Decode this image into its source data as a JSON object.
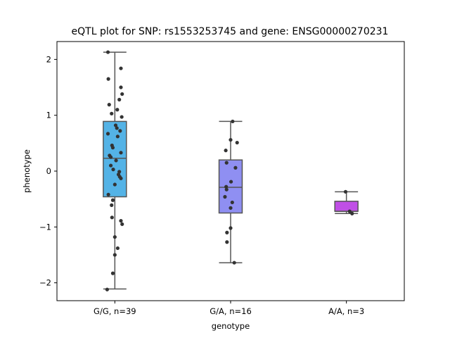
{
  "chart_data": {
    "type": "box",
    "title": "eQTL plot for SNP: rs1553253745 and gene: ENSG00000270231",
    "xlabel": "genotype",
    "ylabel": "phenotype",
    "ylim": [
      -2.32,
      2.32
    ],
    "yticks": [
      {
        "value": 2,
        "label": "2"
      },
      {
        "value": 1,
        "label": "1"
      },
      {
        "value": 0,
        "label": "0"
      },
      {
        "value": -1,
        "label": "−1"
      },
      {
        "value": -2,
        "label": "−2"
      }
    ],
    "grid": false,
    "categories": [
      "G/G, n=39",
      "G/A, n=16",
      "A/A, n=3"
    ],
    "boxes": [
      {
        "category": "G/G, n=39",
        "color": "#54b3e6",
        "whisker_low": -2.11,
        "q1": -0.46,
        "median": 0.23,
        "q3": 0.89,
        "whisker_high": 2.13
      },
      {
        "category": "G/A, n=16",
        "color": "#8f8ff2",
        "whisker_low": -1.64,
        "q1": -0.75,
        "median": -0.29,
        "q3": 0.2,
        "whisker_high": 0.89
      },
      {
        "category": "A/A, n=3",
        "color": "#c04fe6",
        "whisker_low": -0.76,
        "q1": -0.72,
        "median": -0.72,
        "q3": -0.54,
        "whisker_high": -0.37
      }
    ],
    "points": [
      {
        "category": "G/G, n=39",
        "jitter": -0.17,
        "value": 2.13
      },
      {
        "category": "G/G, n=39",
        "jitter": 0.15,
        "value": 1.84
      },
      {
        "category": "G/G, n=39",
        "jitter": -0.16,
        "value": 1.65
      },
      {
        "category": "G/G, n=39",
        "jitter": 0.15,
        "value": 1.5
      },
      {
        "category": "G/G, n=39",
        "jitter": 0.18,
        "value": 1.38
      },
      {
        "category": "G/G, n=39",
        "jitter": 0.11,
        "value": 1.28
      },
      {
        "category": "G/G, n=39",
        "jitter": -0.14,
        "value": 1.19
      },
      {
        "category": "G/G, n=39",
        "jitter": 0.06,
        "value": 1.1
      },
      {
        "category": "G/G, n=39",
        "jitter": -0.08,
        "value": 1.03
      },
      {
        "category": "G/G, n=39",
        "jitter": 0.17,
        "value": 0.97
      },
      {
        "category": "G/G, n=39",
        "jitter": 0.02,
        "value": 0.82
      },
      {
        "category": "G/G, n=39",
        "jitter": 0.05,
        "value": 0.77
      },
      {
        "category": "G/G, n=39",
        "jitter": 0.13,
        "value": 0.72
      },
      {
        "category": "G/G, n=39",
        "jitter": -0.17,
        "value": 0.67
      },
      {
        "category": "G/G, n=39",
        "jitter": 0.07,
        "value": 0.62
      },
      {
        "category": "G/G, n=39",
        "jitter": -0.07,
        "value": 0.46
      },
      {
        "category": "G/G, n=39",
        "jitter": -0.05,
        "value": 0.42
      },
      {
        "category": "G/G, n=39",
        "jitter": 0.15,
        "value": 0.33
      },
      {
        "category": "G/G, n=39",
        "jitter": -0.13,
        "value": 0.28
      },
      {
        "category": "G/G, n=39",
        "jitter": -0.1,
        "value": 0.25
      },
      {
        "category": "G/G, n=39",
        "jitter": 0.03,
        "value": 0.19
      },
      {
        "category": "G/G, n=39",
        "jitter": -0.1,
        "value": 0.1
      },
      {
        "category": "G/G, n=39",
        "jitter": -0.04,
        "value": 0.03
      },
      {
        "category": "G/G, n=39",
        "jitter": 0.11,
        "value": -0.01
      },
      {
        "category": "G/G, n=39",
        "jitter": 0.09,
        "value": -0.06
      },
      {
        "category": "G/G, n=39",
        "jitter": 0.12,
        "value": -0.1
      },
      {
        "category": "G/G, n=39",
        "jitter": 0.15,
        "value": -0.13
      },
      {
        "category": "G/G, n=39",
        "jitter": 0.0,
        "value": -0.24
      },
      {
        "category": "G/G, n=39",
        "jitter": -0.16,
        "value": -0.42
      },
      {
        "category": "G/G, n=39",
        "jitter": -0.05,
        "value": -0.52
      },
      {
        "category": "G/G, n=39",
        "jitter": -0.08,
        "value": -0.61
      },
      {
        "category": "G/G, n=39",
        "jitter": -0.07,
        "value": -0.83
      },
      {
        "category": "G/G, n=39",
        "jitter": 0.15,
        "value": -0.89
      },
      {
        "category": "G/G, n=39",
        "jitter": 0.18,
        "value": -0.95
      },
      {
        "category": "G/G, n=39",
        "jitter": 0.0,
        "value": -1.18
      },
      {
        "category": "G/G, n=39",
        "jitter": 0.07,
        "value": -1.38
      },
      {
        "category": "G/G, n=39",
        "jitter": 0.0,
        "value": -1.5
      },
      {
        "category": "G/G, n=39",
        "jitter": -0.05,
        "value": -1.83
      },
      {
        "category": "G/G, n=39",
        "jitter": -0.19,
        "value": -2.12
      },
      {
        "category": "G/A, n=16",
        "jitter": 0.05,
        "value": 0.89
      },
      {
        "category": "G/A, n=16",
        "jitter": 0.0,
        "value": 0.56
      },
      {
        "category": "G/A, n=16",
        "jitter": 0.16,
        "value": 0.51
      },
      {
        "category": "G/A, n=16",
        "jitter": -0.12,
        "value": 0.37
      },
      {
        "category": "G/A, n=16",
        "jitter": -0.1,
        "value": 0.15
      },
      {
        "category": "G/A, n=16",
        "jitter": 0.12,
        "value": 0.06
      },
      {
        "category": "G/A, n=16",
        "jitter": 0.01,
        "value": -0.19
      },
      {
        "category": "G/A, n=16",
        "jitter": -0.11,
        "value": -0.28
      },
      {
        "category": "G/A, n=16",
        "jitter": -0.1,
        "value": -0.33
      },
      {
        "category": "G/A, n=16",
        "jitter": -0.14,
        "value": -0.46
      },
      {
        "category": "G/A, n=16",
        "jitter": 0.04,
        "value": -0.56
      },
      {
        "category": "G/A, n=16",
        "jitter": 0.0,
        "value": -0.66
      },
      {
        "category": "G/A, n=16",
        "jitter": 0.0,
        "value": -1.02
      },
      {
        "category": "G/A, n=16",
        "jitter": -0.09,
        "value": -1.1
      },
      {
        "category": "G/A, n=16",
        "jitter": -0.09,
        "value": -1.27
      },
      {
        "category": "G/A, n=16",
        "jitter": 0.09,
        "value": -1.64
      },
      {
        "category": "A/A, n=3",
        "jitter": -0.02,
        "value": -0.37
      },
      {
        "category": "A/A, n=3",
        "jitter": 0.08,
        "value": -0.72
      },
      {
        "category": "A/A, n=3",
        "jitter": 0.14,
        "value": -0.76
      }
    ]
  },
  "colors": {
    "box_edge": "#555555",
    "point": "#333333",
    "axes": "#000000"
  }
}
